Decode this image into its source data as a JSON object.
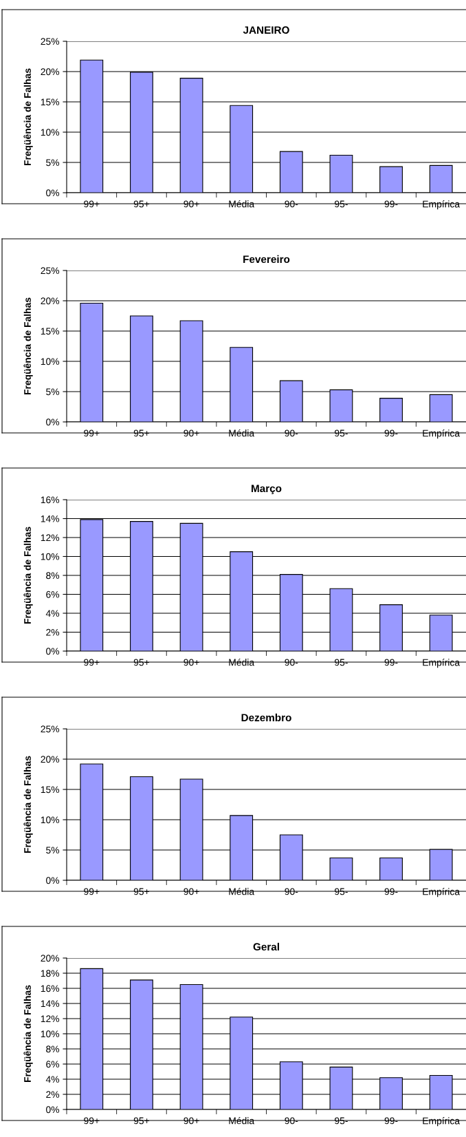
{
  "chart_data": [
    {
      "type": "bar",
      "title": "JANEIRO",
      "ylabel": "Freqüência de Falhas",
      "categories": [
        "99+",
        "95+",
        "90+",
        "Média",
        "90-",
        "95-",
        "99-",
        "Empírica"
      ],
      "values": [
        21.9,
        19.9,
        18.9,
        14.4,
        6.8,
        6.2,
        4.3,
        4.5
      ],
      "color": "#9999ff",
      "ylim": [
        0,
        25
      ],
      "yticks": [
        {
          "value": 0,
          "label": "0%"
        },
        {
          "value": 5,
          "label": "5%"
        },
        {
          "value": 10,
          "label": "10%"
        },
        {
          "value": 15,
          "label": "15%"
        },
        {
          "value": 20,
          "label": "20%"
        },
        {
          "value": 25,
          "label": "25%"
        }
      ],
      "grid": "y",
      "legend": false
    },
    {
      "type": "bar",
      "title": "Fevereiro",
      "ylabel": "Freqüência de Falhas",
      "categories": [
        "99+",
        "95+",
        "90+",
        "Média",
        "90-",
        "95-",
        "99-",
        "Empírica"
      ],
      "values": [
        19.6,
        17.5,
        16.7,
        12.3,
        6.8,
        5.3,
        3.9,
        4.5
      ],
      "color": "#9999ff",
      "ylim": [
        0,
        25
      ],
      "yticks": [
        {
          "value": 0,
          "label": "0%"
        },
        {
          "value": 5,
          "label": "5%"
        },
        {
          "value": 10,
          "label": "10%"
        },
        {
          "value": 15,
          "label": "15%"
        },
        {
          "value": 20,
          "label": "20%"
        },
        {
          "value": 25,
          "label": "25%"
        }
      ],
      "grid": "y",
      "legend": false
    },
    {
      "type": "bar",
      "title": "Março",
      "ylabel": "Freqüência de Falhas",
      "categories": [
        "99+",
        "95+",
        "90+",
        "Média",
        "90-",
        "95-",
        "99-",
        "Empírica"
      ],
      "values": [
        13.9,
        13.7,
        13.5,
        10.5,
        8.1,
        6.6,
        4.9,
        3.8
      ],
      "color": "#9999ff",
      "ylim": [
        0,
        16
      ],
      "yticks": [
        {
          "value": 0,
          "label": "0%"
        },
        {
          "value": 2,
          "label": "2%"
        },
        {
          "value": 4,
          "label": "4%"
        },
        {
          "value": 6,
          "label": "6%"
        },
        {
          "value": 8,
          "label": "8%"
        },
        {
          "value": 10,
          "label": "10%"
        },
        {
          "value": 12,
          "label": "12%"
        },
        {
          "value": 14,
          "label": "14%"
        },
        {
          "value": 16,
          "label": "16%"
        }
      ],
      "grid": "y",
      "legend": false
    },
    {
      "type": "bar",
      "title": "Dezembro",
      "ylabel": "Freqüência de Falhas",
      "categories": [
        "99+",
        "95+",
        "90+",
        "Média",
        "90-",
        "95-",
        "99-",
        "Empírica"
      ],
      "values": [
        19.2,
        17.1,
        16.7,
        10.7,
        7.5,
        3.7,
        3.7,
        5.1
      ],
      "color": "#9999ff",
      "ylim": [
        0,
        25
      ],
      "yticks": [
        {
          "value": 0,
          "label": "0%"
        },
        {
          "value": 5,
          "label": "5%"
        },
        {
          "value": 10,
          "label": "10%"
        },
        {
          "value": 15,
          "label": "15%"
        },
        {
          "value": 20,
          "label": "20%"
        },
        {
          "value": 25,
          "label": "25%"
        }
      ],
      "grid": "y",
      "legend": false
    },
    {
      "type": "bar",
      "title": "Geral",
      "ylabel": "Freqüência de Falhas",
      "categories": [
        "99+",
        "95+",
        "90+",
        "Média",
        "90-",
        "95-",
        "99-",
        "Empírica"
      ],
      "values": [
        18.6,
        17.1,
        16.5,
        12.2,
        6.3,
        5.6,
        4.2,
        4.5
      ],
      "color": "#9999ff",
      "ylim": [
        0,
        20
      ],
      "yticks": [
        {
          "value": 0,
          "label": "0%"
        },
        {
          "value": 2,
          "label": "2%"
        },
        {
          "value": 4,
          "label": "4%"
        },
        {
          "value": 6,
          "label": "6%"
        },
        {
          "value": 8,
          "label": "8%"
        },
        {
          "value": 10,
          "label": "10%"
        },
        {
          "value": 12,
          "label": "12%"
        },
        {
          "value": 14,
          "label": "14%"
        },
        {
          "value": 16,
          "label": "16%"
        },
        {
          "value": 18,
          "label": "18%"
        },
        {
          "value": 20,
          "label": "20%"
        }
      ],
      "grid": "y",
      "legend": false
    }
  ]
}
